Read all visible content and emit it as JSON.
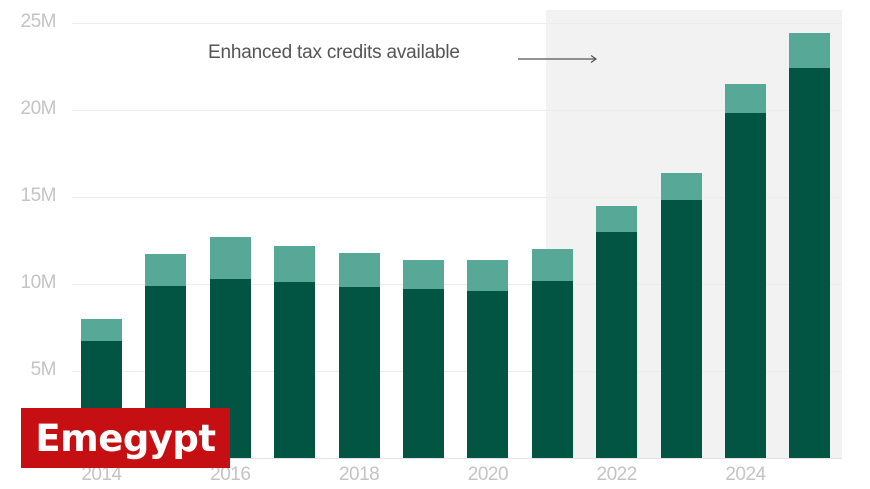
{
  "chart_data": {
    "type": "bar",
    "stacked": true,
    "title": "",
    "xlabel": "",
    "ylabel": "",
    "ylim": [
      0,
      25000000
    ],
    "y_ticks": [
      "5M",
      "10M",
      "15M",
      "20M",
      "25M"
    ],
    "x_ticks": [
      "2014",
      "2016",
      "2018",
      "2020",
      "2022",
      "2024"
    ],
    "categories": [
      "2014",
      "2015",
      "2016",
      "2017",
      "2018",
      "2019",
      "2020",
      "2021",
      "2022",
      "2023",
      "2024",
      "2025"
    ],
    "series": [
      {
        "name": "Lower segment (dark green)",
        "color": "#025443",
        "values": [
          6.7,
          9.9,
          10.3,
          10.1,
          9.8,
          9.7,
          9.6,
          10.2,
          13.0,
          14.8,
          19.8,
          22.4
        ]
      },
      {
        "name": "Upper segment (light green)",
        "color": "#58a897",
        "values": [
          1.3,
          1.8,
          2.4,
          2.1,
          2.0,
          1.7,
          1.8,
          1.8,
          1.5,
          1.6,
          1.7,
          2.0
        ]
      }
    ],
    "totals": [
      8.0,
      11.7,
      12.7,
      12.2,
      11.8,
      11.4,
      11.4,
      12.0,
      14.5,
      16.4,
      21.5,
      24.4
    ],
    "units": "millions",
    "grid": true,
    "legend": "none",
    "annotations": [
      {
        "text": "Enhanced tax credits available",
        "shaded_region_start": "2021",
        "shaded_region_end": "2025",
        "arrow": "right"
      }
    ]
  },
  "annotation": {
    "text": "Enhanced tax credits available"
  },
  "watermark": {
    "text": "Emegypt",
    "color": "#c60f13"
  },
  "colors": {
    "dark": "#025443",
    "light": "#58a897",
    "shade": "#f2f2f2"
  }
}
